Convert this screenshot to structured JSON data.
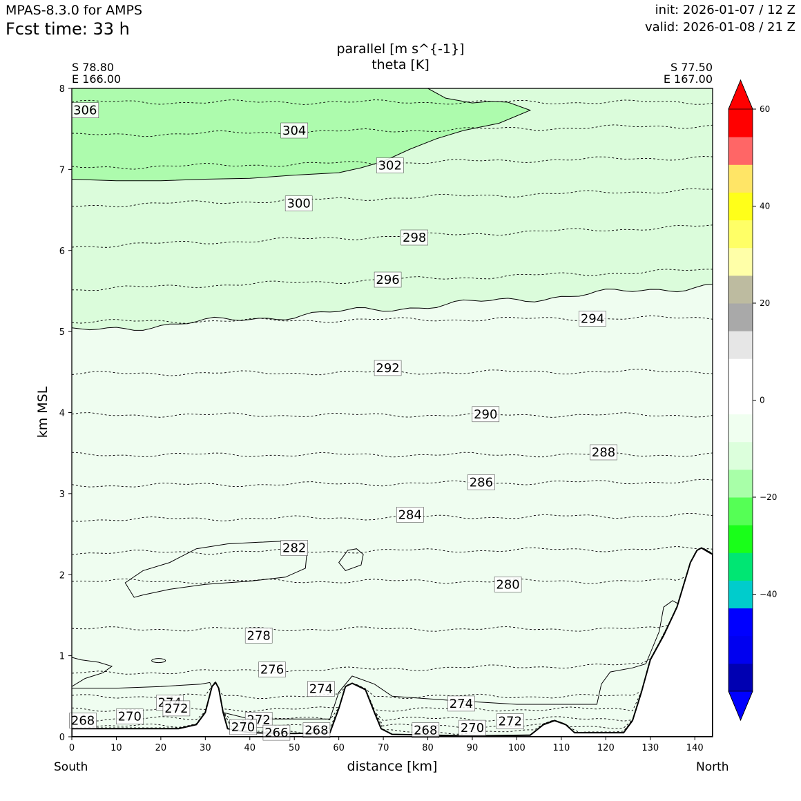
{
  "header": {
    "model": "MPAS-8.3.0 for AMPS",
    "fcst_label": "Fcst time:   33 h",
    "init": "init: 2026-01-07 / 12 Z",
    "valid": "valid: 2026-01-08 / 21 Z"
  },
  "titles": {
    "line1": "parallel [m s^{-1}]",
    "line2": "theta [K]"
  },
  "endpoints": {
    "left_lat": "S 78.80",
    "left_lon": "E 166.00",
    "right_lat": "S 77.50",
    "right_lon": "E 167.00"
  },
  "direction": {
    "left": "South",
    "right": "North"
  },
  "colors": {
    "light_green": "#dbfcdb",
    "pale_green": "#effdf0",
    "mid_green": "#adfbad",
    "terrain": "#ffffff"
  },
  "chart_data": {
    "type": "cross-section contour",
    "xlabel": "distance [km]",
    "ylabel": "km MSL",
    "xlim": [
      0,
      144
    ],
    "ylim": [
      0,
      8
    ],
    "xticks": [
      "0",
      "10",
      "20",
      "30",
      "40",
      "50",
      "60",
      "70",
      "80",
      "90",
      "100",
      "110",
      "120",
      "130",
      "140"
    ],
    "yticks": [
      "0",
      "1",
      "2",
      "3",
      "4",
      "5",
      "6",
      "7",
      "8"
    ],
    "theta_levels": [
      {
        "value": 306,
        "km": 7.83,
        "slope": 0.0
      },
      {
        "value": 304,
        "km": 7.42,
        "slope": 0.12
      },
      {
        "value": 302,
        "km": 7.02,
        "slope": 0.13
      },
      {
        "value": 300,
        "km": 6.55,
        "slope": 0.2
      },
      {
        "value": 298,
        "km": 6.05,
        "slope": 0.25
      },
      {
        "value": 296,
        "km": 5.52,
        "slope": 0.24
      },
      {
        "value": 294,
        "km": 5.12,
        "slope": 0.05
      },
      {
        "value": 292,
        "km": 4.48,
        "slope": 0.03
      },
      {
        "value": 290,
        "km": 3.97,
        "slope": 0.0
      },
      {
        "value": 288,
        "km": 3.48,
        "slope": 0.0
      },
      {
        "value": 286,
        "km": 3.1,
        "slope": 0.05
      },
      {
        "value": 284,
        "km": 2.68,
        "slope": 0.05
      },
      {
        "value": 282,
        "km": 2.27,
        "slope": 0.05
      },
      {
        "value": 280,
        "km": 1.92,
        "slope": 0.0
      },
      {
        "value": 278,
        "km": 1.33,
        "slope": 0.0
      },
      {
        "value": 276,
        "km": 0.78,
        "slope": 0.12
      },
      {
        "value": 274,
        "km": 0.5,
        "slope": 0.0
      },
      {
        "value": 272,
        "km": 0.34,
        "slope": 0.0
      },
      {
        "value": 270,
        "km": 0.22,
        "slope": 0.0
      },
      {
        "value": 268,
        "km": 0.13,
        "slope": 0.0
      },
      {
        "value": 266,
        "km": 0.06,
        "slope": 0.0
      }
    ],
    "contour_labels": [
      {
        "text": "306",
        "x": 3,
        "y": 7.73
      },
      {
        "text": "304",
        "x": 50,
        "y": 7.48
      },
      {
        "text": "302",
        "x": 71.5,
        "y": 7.05
      },
      {
        "text": "300",
        "x": 51,
        "y": 6.58
      },
      {
        "text": "298",
        "x": 77,
        "y": 6.16
      },
      {
        "text": "296",
        "x": 71,
        "y": 5.64
      },
      {
        "text": "294",
        "x": 117,
        "y": 5.16
      },
      {
        "text": "292",
        "x": 71,
        "y": 4.55
      },
      {
        "text": "290",
        "x": 93,
        "y": 3.98
      },
      {
        "text": "288",
        "x": 119.5,
        "y": 3.51
      },
      {
        "text": "286",
        "x": 92,
        "y": 3.14
      },
      {
        "text": "284",
        "x": 76,
        "y": 2.74
      },
      {
        "text": "282",
        "x": 50,
        "y": 2.33
      },
      {
        "text": "280",
        "x": 98,
        "y": 1.88
      },
      {
        "text": "278",
        "x": 42,
        "y": 1.25
      },
      {
        "text": "276",
        "x": 45,
        "y": 0.83
      },
      {
        "text": "274",
        "x": 56,
        "y": 0.59
      },
      {
        "text": "274",
        "x": 22,
        "y": 0.42
      },
      {
        "text": "272",
        "x": 23.5,
        "y": 0.35
      },
      {
        "text": "274",
        "x": 87.5,
        "y": 0.41
      },
      {
        "text": "270",
        "x": 13,
        "y": 0.25
      },
      {
        "text": "268",
        "x": 2.5,
        "y": 0.2
      },
      {
        "text": "272",
        "x": 42,
        "y": 0.21
      },
      {
        "text": "270",
        "x": 38.5,
        "y": 0.12
      },
      {
        "text": "266",
        "x": 46,
        "y": 0.05
      },
      {
        "text": "268",
        "x": 55,
        "y": 0.08
      },
      {
        "text": "268",
        "x": 79.5,
        "y": 0.08
      },
      {
        "text": "270",
        "x": 90,
        "y": 0.11
      },
      {
        "text": "272",
        "x": 98.5,
        "y": 0.19
      }
    ],
    "shading_regions": [
      {
        "range": "-20 to -16",
        "description": "upper-left band, approx 6.9-8 km"
      },
      {
        "range": "-12 to -8",
        "description": "mid band, approx 5-7 km"
      },
      {
        "range": "-8 to 0",
        "description": "lower troposphere, 0-5 km"
      }
    ],
    "terrain_km": [
      [
        0,
        0.1
      ],
      [
        20,
        0.1
      ],
      [
        24,
        0.1
      ],
      [
        28,
        0.15
      ],
      [
        30,
        0.3
      ],
      [
        31.5,
        0.62
      ],
      [
        32.3,
        0.67
      ],
      [
        33,
        0.6
      ],
      [
        34,
        0.3
      ],
      [
        35,
        0.1
      ],
      [
        40,
        0.05
      ],
      [
        50,
        0.04
      ],
      [
        58,
        0.05
      ],
      [
        60,
        0.35
      ],
      [
        61.5,
        0.62
      ],
      [
        63,
        0.66
      ],
      [
        66,
        0.58
      ],
      [
        68,
        0.3
      ],
      [
        69.5,
        0.1
      ],
      [
        72,
        0.03
      ],
      [
        90,
        0.01
      ],
      [
        103,
        0.02
      ],
      [
        106,
        0.15
      ],
      [
        108.5,
        0.2
      ],
      [
        111,
        0.15
      ],
      [
        113,
        0.05
      ],
      [
        124,
        0.05
      ],
      [
        126,
        0.2
      ],
      [
        128,
        0.55
      ],
      [
        130,
        0.95
      ],
      [
        133,
        1.25
      ],
      [
        136,
        1.6
      ],
      [
        139,
        2.15
      ],
      [
        140.5,
        2.3
      ],
      [
        141.5,
        2.33
      ],
      [
        143,
        2.28
      ],
      [
        144,
        2.25
      ]
    ],
    "colorbar": {
      "min": -60,
      "max": 60,
      "step": 5.7143,
      "tick_labels": [
        "60",
        "40",
        "20",
        "0",
        "−20",
        "−40"
      ],
      "tick_values": [
        60,
        40,
        20,
        0,
        -20,
        -40
      ],
      "colors": [
        "#0000b2",
        "#0000f0",
        "#0000ff",
        "#00cccc",
        "#00e673",
        "#19ff19",
        "#55ff55",
        "#a8ffa8",
        "#dcffdc",
        "#f0fff0",
        "#ffffff",
        "#ffffff",
        "#e6e6e6",
        "#a9a9a9",
        "#bdbba0",
        "#ffffa8",
        "#ffff66",
        "#ffff19",
        "#ffe566",
        "#ff6666",
        "#ff0000"
      ],
      "under_color": "#0000ff",
      "over_color": "#ff0000"
    }
  }
}
